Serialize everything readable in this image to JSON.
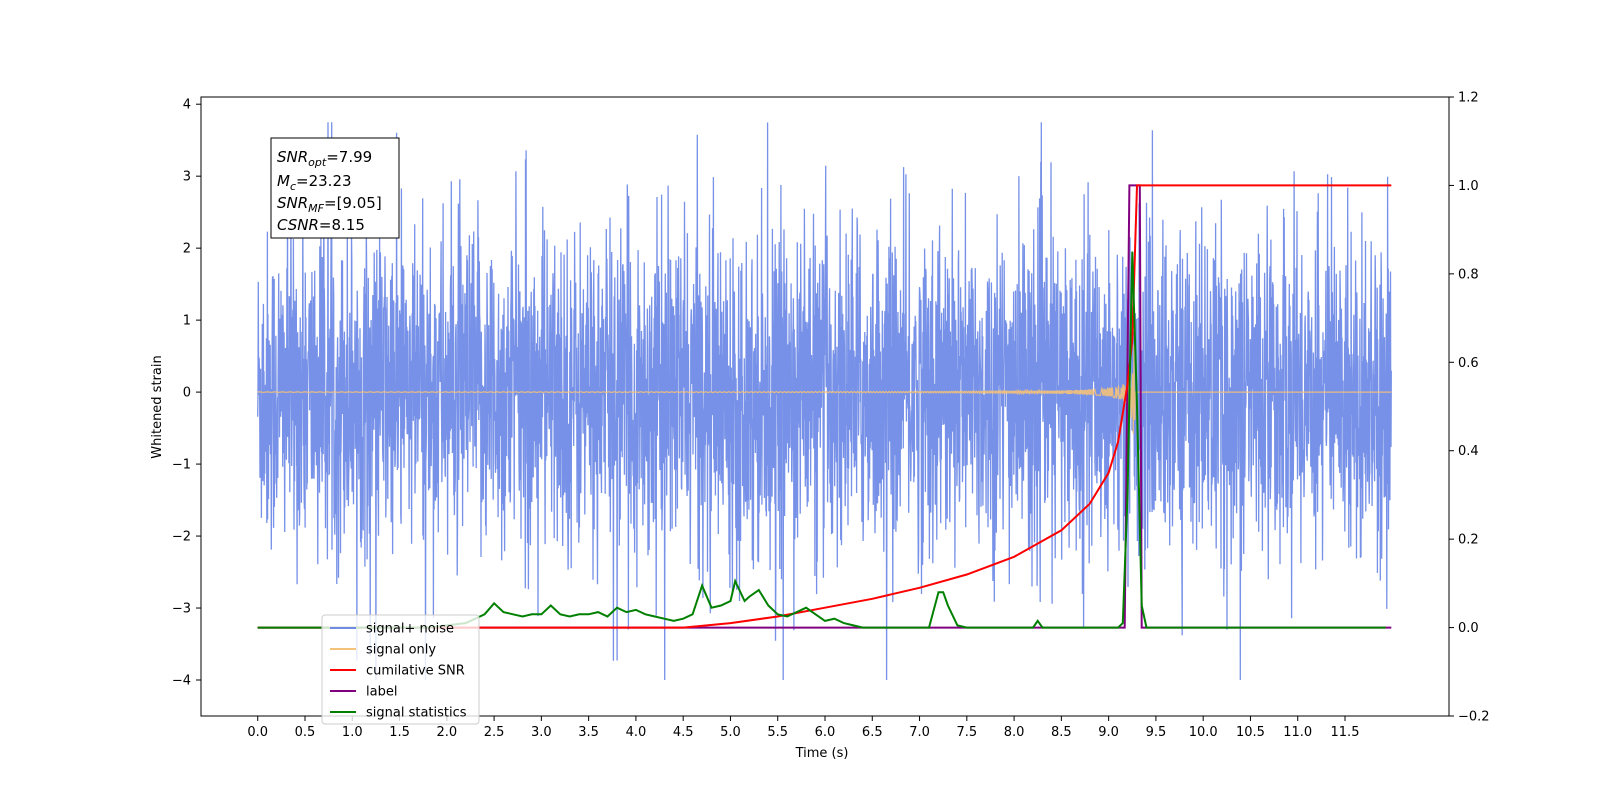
{
  "chart_data": {
    "type": "line",
    "xlabel": "Time (s)",
    "ylabel": "Whitened strain",
    "xlim": [
      -0.6,
      12.6
    ],
    "ylim": [
      -4.5,
      4.1
    ],
    "y2lim": [
      -0.2,
      1.2
    ],
    "x_ticks": [
      "0.0",
      "0.5",
      "1.0",
      "1.5",
      "2.0",
      "2.5",
      "3.0",
      "3.5",
      "4.0",
      "4.5",
      "5.0",
      "5.5",
      "6.0",
      "6.5",
      "7.0",
      "7.5",
      "8.0",
      "8.5",
      "9.0",
      "9.5",
      "10.0",
      "10.5",
      "11.0",
      "11.5"
    ],
    "y_ticks": [
      "4",
      "3",
      "2",
      "1",
      "0",
      "−1",
      "−2",
      "−3",
      "−4"
    ],
    "y2_ticks": [
      "1.2",
      "1.0",
      "0.8",
      "0.6",
      "0.4",
      "0.2",
      "0.0",
      "−0.2"
    ],
    "annotation": [
      "SNR_opt=7.99",
      "M_c=23.23",
      "SNR_MF=[9.05]",
      "CSNR=8.15"
    ],
    "legend_position": "lower-left",
    "series": [
      {
        "name": "signal+ noise",
        "axis": "left",
        "color": "#6f8be6",
        "note_values": "noise band ≈ ±1.6 typical, peaks to ±3.7 over t=0.0–11.99"
      },
      {
        "name": "signal only",
        "axis": "left",
        "color": "#f5c27a",
        "chirp": {
          "start": 0.0,
          "merger": 9.28,
          "end": 11.99,
          "peak_amplitude": 0.95
        }
      },
      {
        "name": "cumilative SNR",
        "axis": "right",
        "color": "#ff0000",
        "x": [
          0.0,
          4.5,
          5.0,
          5.5,
          6.0,
          6.5,
          7.0,
          7.5,
          8.0,
          8.5,
          8.8,
          9.0,
          9.1,
          9.2,
          9.25,
          9.3,
          9.35,
          11.99
        ],
        "y": [
          0.0,
          0.0,
          0.01,
          0.025,
          0.045,
          0.065,
          0.09,
          0.12,
          0.16,
          0.22,
          0.28,
          0.35,
          0.42,
          0.55,
          0.65,
          1.0,
          1.0,
          1.0
        ]
      },
      {
        "name": "label",
        "axis": "right",
        "color": "#800080",
        "x": [
          0.0,
          9.17,
          9.22,
          9.33,
          9.35,
          11.99
        ],
        "y": [
          0.0,
          0.0,
          1.0,
          1.0,
          0.0,
          0.0
        ]
      },
      {
        "name": "signal statistics",
        "axis": "right",
        "color": "#008000",
        "x": [
          0.0,
          1.8,
          2.2,
          2.4,
          2.5,
          2.6,
          2.7,
          2.8,
          2.9,
          3.0,
          3.1,
          3.2,
          3.3,
          3.4,
          3.5,
          3.6,
          3.7,
          3.8,
          3.9,
          4.0,
          4.1,
          4.2,
          4.3,
          4.4,
          4.5,
          4.6,
          4.7,
          4.75,
          4.8,
          4.9,
          5.0,
          5.05,
          5.15,
          5.2,
          5.3,
          5.4,
          5.5,
          5.6,
          5.7,
          5.8,
          5.9,
          6.0,
          6.1,
          6.2,
          6.3,
          6.4,
          6.5,
          7.1,
          7.2,
          7.25,
          7.3,
          7.4,
          7.5,
          8.2,
          8.25,
          8.3,
          9.1,
          9.15,
          9.2,
          9.25,
          9.3,
          9.35,
          9.4,
          11.93
        ],
        "y": [
          0.0,
          0.0,
          0.01,
          0.03,
          0.055,
          0.035,
          0.03,
          0.025,
          0.03,
          0.03,
          0.05,
          0.03,
          0.025,
          0.03,
          0.03,
          0.035,
          0.025,
          0.045,
          0.035,
          0.04,
          0.03,
          0.025,
          0.02,
          0.015,
          0.02,
          0.03,
          0.095,
          0.07,
          0.045,
          0.05,
          0.06,
          0.105,
          0.06,
          0.07,
          0.085,
          0.05,
          0.03,
          0.025,
          0.035,
          0.045,
          0.03,
          0.015,
          0.02,
          0.01,
          0.005,
          0.0,
          0.0,
          0.0,
          0.08,
          0.08,
          0.05,
          0.005,
          0.0,
          0.0,
          0.015,
          0.0,
          0.0,
          0.01,
          0.3,
          0.85,
          0.5,
          0.05,
          0.0,
          0.0
        ]
      }
    ]
  }
}
